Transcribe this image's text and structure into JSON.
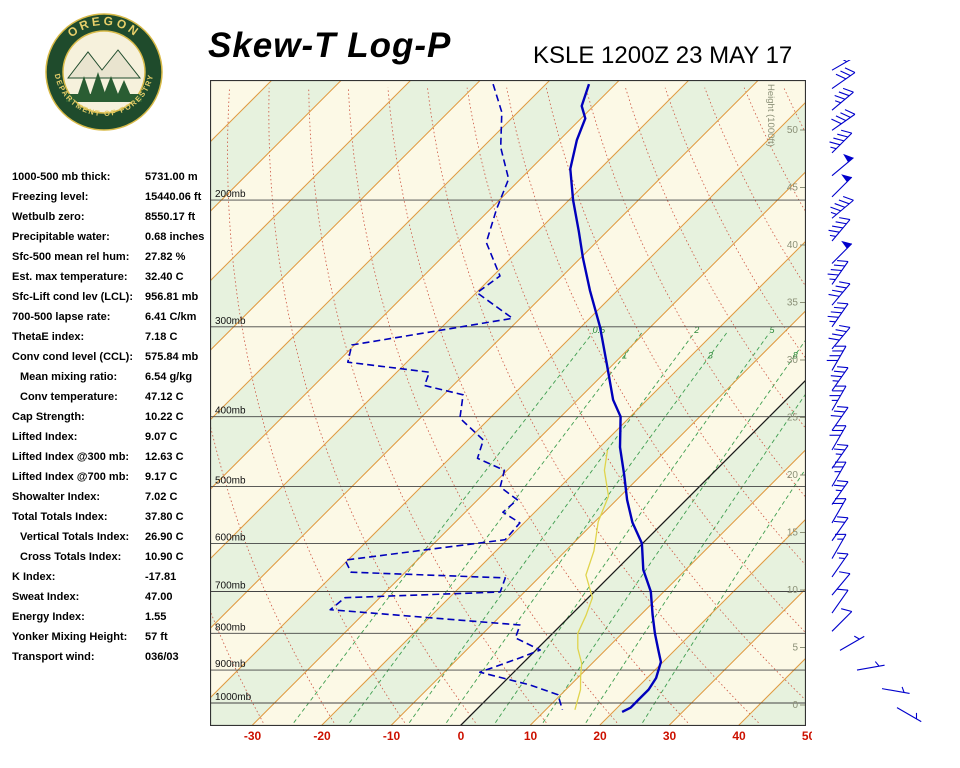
{
  "header": {
    "title": "Skew-T Log-P",
    "station": "KSLE 1200Z 23 MAY 17",
    "logo": {
      "text_top": "OREGON",
      "text_bottom": "DEPARTMENT OF FORESTRY"
    }
  },
  "stats": [
    {
      "label": "1000-500 mb thick:",
      "value": "5731.00 m",
      "indent": false
    },
    {
      "label": "Freezing level:",
      "value": "15440.06 ft",
      "indent": false
    },
    {
      "label": "Wetbulb zero:",
      "value": "8550.17 ft",
      "indent": false
    },
    {
      "label": "Precipitable water:",
      "value": "0.68 inches",
      "indent": false
    },
    {
      "label": "Sfc-500 mean rel hum:",
      "value": "27.82 %",
      "indent": false
    },
    {
      "label": "Est. max temperature:",
      "value": "32.40 C",
      "indent": false
    },
    {
      "label": "Sfc-Lift cond lev (LCL):",
      "value": "956.81 mb",
      "indent": false
    },
    {
      "label": "700-500 lapse rate:",
      "value": "6.41 C/km",
      "indent": false
    },
    {
      "label": "ThetaE index:",
      "value": "7.18 C",
      "indent": false
    },
    {
      "label": "Conv cond level (CCL):",
      "value": "575.84 mb",
      "indent": false
    },
    {
      "label": "Mean mixing ratio:",
      "value": "6.54 g/kg",
      "indent": true
    },
    {
      "label": "Conv temperature:",
      "value": "47.12 C",
      "indent": true
    },
    {
      "label": "Cap Strength:",
      "value": "10.22 C",
      "indent": false
    },
    {
      "label": "Lifted Index:",
      "value": "9.07 C",
      "indent": false
    },
    {
      "label": "Lifted Index @300 mb:",
      "value": "12.63 C",
      "indent": false
    },
    {
      "label": "Lifted Index @700 mb:",
      "value": "9.17 C",
      "indent": false
    },
    {
      "label": "Showalter Index:",
      "value": "7.02 C",
      "indent": false
    },
    {
      "label": "Total Totals Index:",
      "value": "37.80 C",
      "indent": false
    },
    {
      "label": "Vertical Totals Index:",
      "value": "26.90 C",
      "indent": true
    },
    {
      "label": "Cross Totals Index:",
      "value": "10.90 C",
      "indent": true
    },
    {
      "label": "K Index:",
      "value": "-17.81",
      "indent": false
    },
    {
      "label": "Sweat Index:",
      "value": "47.00",
      "indent": false
    },
    {
      "label": "Energy Index:",
      "value": "1.55",
      "indent": false
    },
    {
      "label": "Yonker Mixing Height:",
      "value": "57 ft",
      "indent": false
    },
    {
      "label": "Transport wind:",
      "value": "036/03",
      "indent": false
    }
  ],
  "chart_data": {
    "type": "line",
    "title": "Skew-T Log-P",
    "station": "KSLE 1200Z 23 MAY 17",
    "x_axis": {
      "unit": "C",
      "ticks": [
        -30,
        -20,
        -10,
        0,
        10,
        20,
        30,
        40,
        50
      ]
    },
    "pressure_axis": {
      "labels": [
        "200mb",
        "300mb",
        "400mb",
        "500mb",
        "600mb",
        "700mb",
        "800mb",
        "900mb",
        "1000mb"
      ],
      "values": [
        200,
        300,
        400,
        500,
        600,
        700,
        800,
        900,
        1000
      ]
    },
    "height_axis": {
      "title": "Height (1000ft)",
      "ticks": [
        0,
        5,
        10,
        15,
        20,
        25,
        30,
        35,
        40,
        45,
        50
      ]
    },
    "isotherm_step_c": 10,
    "mixing_ratio_lines_gkg": [
      0.5,
      1,
      2,
      3,
      5,
      8,
      12,
      20
    ],
    "colors": {
      "background": "#fcf9e6",
      "band": "#e7f2de",
      "isotherm": "#e09a40",
      "zero_line": "#1a1a1a",
      "adiabat": "#cc5540",
      "mixing": "#3f9e50",
      "grid": "#444444",
      "profile": "#0000bb",
      "wetbulb": "#e0d44c",
      "height_labels": "#8b9077",
      "x_tick_color": "#cc1100",
      "wind": "#0000cc"
    },
    "series": [
      {
        "name": "wet-bulb",
        "style": "solid",
        "points": [
          [
            445,
            -18.5
          ],
          [
            475,
            -16.0
          ],
          [
            516,
            -11.7
          ],
          [
            560,
            -9.5
          ],
          [
            615,
            -5.9
          ],
          [
            664,
            -3.6
          ],
          [
            714,
            0.6
          ],
          [
            755,
            2.2
          ],
          [
            800,
            3.6
          ],
          [
            840,
            5.8
          ],
          [
            881,
            8.5
          ],
          [
            920,
            10.3
          ],
          [
            958,
            12.1
          ],
          [
            1022,
            14.2
          ]
        ]
      },
      {
        "name": "dewpoint",
        "style": "dashed",
        "points": [
          [
            138,
            -87.6
          ],
          [
            151,
            -82.3
          ],
          [
            169,
            -77.4
          ],
          [
            187,
            -71.7
          ],
          [
            206,
            -69.1
          ],
          [
            229,
            -65.8
          ],
          [
            255,
            -59.0
          ],
          [
            269,
            -59.9
          ],
          [
            292,
            -51.1
          ],
          [
            318,
            -70.4
          ],
          [
            336,
            -68.5
          ],
          [
            347,
            -55.3
          ],
          [
            362,
            -54.1
          ],
          [
            373,
            -47.2
          ],
          [
            402,
            -44.3
          ],
          [
            431,
            -37.8
          ],
          [
            457,
            -36.0
          ],
          [
            475,
            -30.4
          ],
          [
            501,
            -28.6
          ],
          [
            522,
            -24.3
          ],
          [
            543,
            -24.6
          ],
          [
            562,
            -20.6
          ],
          [
            593,
            -20.3
          ],
          [
            633,
            -40.4
          ],
          [
            658,
            -37.8
          ],
          [
            670,
            -14.8
          ],
          [
            701,
            -13.5
          ],
          [
            714,
            -35.0
          ],
          [
            742,
            -35.4
          ],
          [
            779,
            -5.9
          ],
          [
            812,
            -4.7
          ],
          [
            844,
            0.6
          ],
          [
            866,
            -1.2
          ],
          [
            906,
            -4.9
          ],
          [
            944,
            4.2
          ],
          [
            974,
            9.6
          ],
          [
            1022,
            12.4
          ]
        ]
      },
      {
        "name": "temperature",
        "style": "solid",
        "points": [
          [
            138,
            -73.8
          ],
          [
            148,
            -71.7
          ],
          [
            154,
            -69.4
          ],
          [
            165,
            -67.5
          ],
          [
            181,
            -64.3
          ],
          [
            200,
            -59.4
          ],
          [
            221,
            -54.1
          ],
          [
            241,
            -49.6
          ],
          [
            267,
            -44.0
          ],
          [
            300,
            -37.3
          ],
          [
            339,
            -30.8
          ],
          [
            379,
            -24.9
          ],
          [
            400,
            -21.4
          ],
          [
            441,
            -17.1
          ],
          [
            482,
            -12.5
          ],
          [
            522,
            -8.5
          ],
          [
            561,
            -4.5
          ],
          [
            600,
            -0.1
          ],
          [
            653,
            3.9
          ],
          [
            700,
            8.1
          ],
          [
            754,
            11.7
          ],
          [
            800,
            14.7
          ],
          [
            844,
            17.6
          ],
          [
            877,
            19.7
          ],
          [
            923,
            21.3
          ],
          [
            958,
            21.9
          ],
          [
            990,
            21.9
          ],
          [
            1015,
            21.9
          ],
          [
            1029,
            21.3
          ]
        ]
      }
    ],
    "winds_p_dir_spd": [
      [
        132,
        60,
        25,
        0
      ],
      [
        140,
        55,
        30,
        0
      ],
      [
        150,
        50,
        35,
        0
      ],
      [
        160,
        55,
        40,
        0
      ],
      [
        172,
        45,
        45,
        0
      ],
      [
        185,
        50,
        50,
        0
      ],
      [
        198,
        45,
        50,
        0
      ],
      [
        212,
        50,
        45,
        0
      ],
      [
        228,
        40,
        45,
        0
      ],
      [
        245,
        45,
        50,
        0
      ],
      [
        262,
        35,
        45,
        0
      ],
      [
        280,
        40,
        40,
        0
      ],
      [
        300,
        35,
        45,
        0
      ],
      [
        322,
        40,
        40,
        0
      ],
      [
        345,
        30,
        40,
        0
      ],
      [
        368,
        35,
        35,
        0
      ],
      [
        392,
        30,
        35,
        0
      ],
      [
        418,
        35,
        30,
        0
      ],
      [
        445,
        30,
        30,
        0
      ],
      [
        472,
        35,
        25,
        0
      ],
      [
        500,
        30,
        25,
        0
      ],
      [
        530,
        35,
        25,
        0
      ],
      [
        562,
        30,
        20,
        0
      ],
      [
        595,
        35,
        20,
        0
      ],
      [
        630,
        30,
        15,
        0
      ],
      [
        668,
        35,
        15,
        0
      ],
      [
        708,
        40,
        10,
        0
      ],
      [
        750,
        35,
        10,
        0
      ],
      [
        795,
        45,
        10,
        0
      ],
      [
        845,
        60,
        5,
        8
      ],
      [
        900,
        80,
        5,
        25
      ],
      [
        955,
        100,
        5,
        50
      ],
      [
        1015,
        120,
        3,
        65
      ]
    ]
  }
}
